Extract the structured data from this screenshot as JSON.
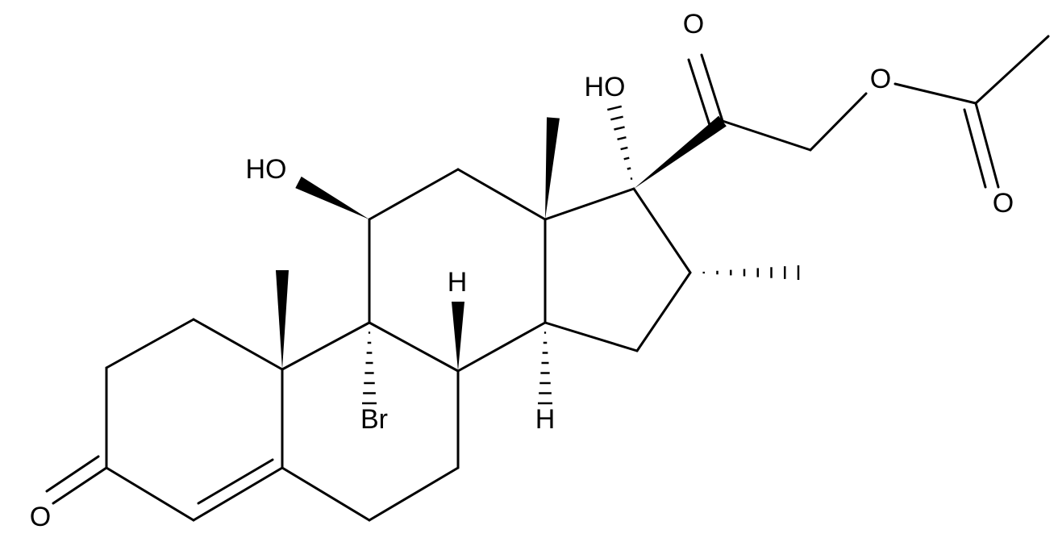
{
  "atoms": [
    {
      "label": "O"
    },
    {
      "label": "HO"
    },
    {
      "label": "Br"
    },
    {
      "label": "H"
    },
    {
      "label": "H"
    },
    {
      "label": "HO"
    },
    {
      "label": "O"
    },
    {
      "label": "O"
    },
    {
      "label": "O"
    }
  ]
}
